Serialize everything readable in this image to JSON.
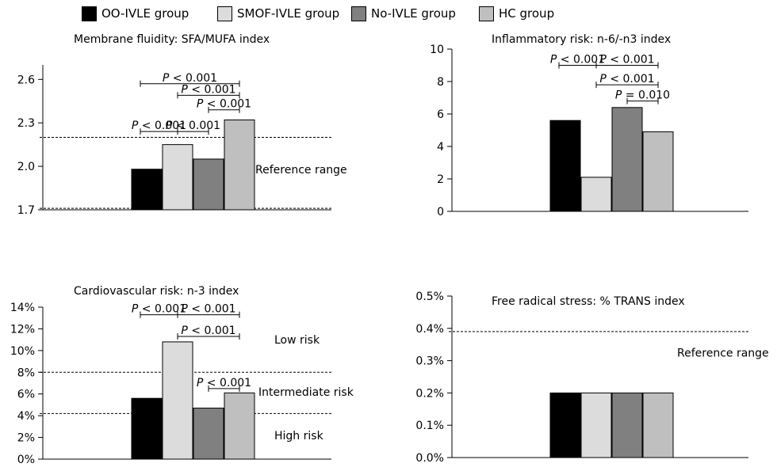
{
  "legend": [
    {
      "label": "OO-IVLE group",
      "color": "#000000"
    },
    {
      "label": "SMOF-IVLE group",
      "color": "#dcdcdc"
    },
    {
      "label": "No-IVLE group",
      "color": "#808080"
    },
    {
      "label": "HC group",
      "color": "#bfbfbf"
    }
  ],
  "chart_data": [
    {
      "type": "bar",
      "title": "Membrane fluidity: SFA/MUFA index",
      "categories": [
        "OO-IVLE group",
        "SMOF-IVLE group",
        "No-IVLE group",
        "HC group"
      ],
      "values": [
        1.98,
        2.15,
        2.05,
        2.32
      ],
      "ylim": [
        1.7,
        2.7
      ],
      "yticks": [
        1.7,
        2.0,
        2.3,
        2.6
      ],
      "ytick_labels": [
        "1.7",
        "2.0",
        "2.3",
        "2.6"
      ],
      "ref_lines": [
        1.71,
        2.2
      ],
      "annotations": [
        {
          "text": "Reference range",
          "y": 1.98
        }
      ],
      "comparisons": [
        {
          "a": 0,
          "b": 3,
          "y": 2.57,
          "p_label": "P",
          "p_value": "< 0.001"
        },
        {
          "a": 1,
          "b": 3,
          "y": 2.49,
          "p_label": "P",
          "p_value": "< 0.001"
        },
        {
          "a": 2,
          "b": 3,
          "y": 2.39,
          "p_label": "P",
          "p_value": "< 0.001"
        },
        {
          "a": 0,
          "b": 1,
          "y": 2.24,
          "p_label": "P",
          "p_value": "< 0.001"
        },
        {
          "a": 1,
          "b": 2,
          "y": 2.24,
          "p_label": "P",
          "p_value": "< 0.001"
        }
      ]
    },
    {
      "type": "bar",
      "title": "Inflammatory risk: n-6/-n3 index",
      "categories": [
        "OO-IVLE group",
        "SMOF-IVLE group",
        "No-IVLE group",
        "HC group"
      ],
      "values": [
        5.6,
        2.1,
        6.4,
        4.9
      ],
      "ylim": [
        0,
        10
      ],
      "yticks": [
        0,
        2,
        4,
        6,
        8,
        10
      ],
      "ytick_labels": [
        "0",
        "2",
        "4",
        "6",
        "8",
        "10"
      ],
      "ref_lines": [],
      "annotations": [],
      "comparisons": [
        {
          "a": 0,
          "b": 1,
          "y": 9.0,
          "p_label": "P",
          "p_value": "< 0.001"
        },
        {
          "a": 1,
          "b": 3,
          "y": 9.0,
          "p_label": "P",
          "p_value": "< 0.001"
        },
        {
          "a": 1,
          "b": 3,
          "y": 7.8,
          "p_label": "P",
          "p_value": "< 0.001"
        },
        {
          "a": 2,
          "b": 3,
          "y": 6.8,
          "p_label": "P",
          "p_value": "= 0.010"
        }
      ]
    },
    {
      "type": "bar",
      "title": "Cardiovascular risk: n-3 index",
      "categories": [
        "OO-IVLE group",
        "SMOF-IVLE group",
        "No-IVLE group",
        "HC group"
      ],
      "values": [
        5.6,
        10.8,
        4.7,
        6.1
      ],
      "ylim": [
        0,
        14
      ],
      "yticks": [
        0,
        2,
        4,
        6,
        8,
        10,
        12,
        14
      ],
      "ytick_labels": [
        "0%",
        "2%",
        "4%",
        "6%",
        "8%",
        "10%",
        "12%",
        "14%"
      ],
      "ref_lines": [
        8,
        4.2
      ],
      "annotations": [
        {
          "text": "Low risk",
          "y": 11
        },
        {
          "text": "Intermediate risk",
          "y": 6.2
        },
        {
          "text": "High risk",
          "y": 2.2
        }
      ],
      "comparisons": [
        {
          "a": 0,
          "b": 1,
          "y": 13.3,
          "p_label": "P",
          "p_value": "< 0.001"
        },
        {
          "a": 1,
          "b": 3,
          "y": 13.3,
          "p_label": "P",
          "p_value": "< 0.001"
        },
        {
          "a": 1,
          "b": 3,
          "y": 11.3,
          "p_label": "P",
          "p_value": "< 0.001"
        },
        {
          "a": 2,
          "b": 3,
          "y": 6.5,
          "p_label": "P",
          "p_value": "< 0.001"
        }
      ]
    },
    {
      "type": "bar",
      "title": "Free radical stress: % TRANS index",
      "categories": [
        "OO-IVLE group",
        "SMOF-IVLE group",
        "No-IVLE group",
        "HC group"
      ],
      "values": [
        0.2,
        0.2,
        0.2,
        0.2
      ],
      "ylim": [
        0,
        0.5
      ],
      "yticks": [
        0,
        0.1,
        0.2,
        0.3,
        0.4,
        0.5
      ],
      "ytick_labels": [
        "0.0%",
        "0.1%",
        "0.2%",
        "0.3%",
        "0.4%",
        "0.5%"
      ],
      "ref_lines": [
        0.39,
        0.0
      ],
      "annotations": [
        {
          "text": "Reference range",
          "y": 0.325
        }
      ],
      "comparisons": []
    }
  ]
}
